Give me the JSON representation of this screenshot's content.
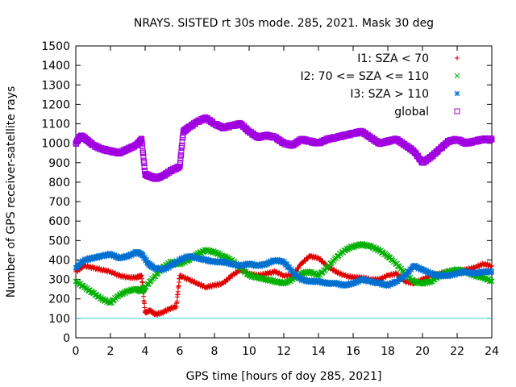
{
  "chart_data": {
    "type": "scatter",
    "title": "NRAYS. SISTED rt 30s mode. 285, 2021. Mask 30 deg",
    "xlabel": "GPS time [hours of doy 285, 2021]",
    "ylabel": "Number of GPS receiver-satellite rays",
    "xlim": [
      0,
      24
    ],
    "ylim": [
      0,
      1500
    ],
    "xticks": [
      "0",
      "2",
      "4",
      "6",
      "8",
      "10",
      "12",
      "14",
      "16",
      "18",
      "20",
      "22",
      "24"
    ],
    "yticks": [
      "0",
      "100",
      "200",
      "300",
      "400",
      "500",
      "600",
      "700",
      "800",
      "900",
      "1000",
      "1100",
      "1200",
      "1300",
      "1400",
      "1500"
    ],
    "reference_line": {
      "y": 100,
      "color": "#40d0e0"
    },
    "legend_position": "top-right",
    "series": [
      {
        "name": "I1: SZA < 70",
        "marker": "plus",
        "color": "#e00000",
        "x": [
          0.0,
          0.5,
          1.0,
          1.5,
          2.0,
          2.5,
          3.0,
          3.5,
          3.8,
          4.0,
          4.3,
          4.6,
          5.0,
          5.4,
          5.8,
          6.0,
          6.5,
          7.0,
          7.5,
          8.0,
          8.5,
          9.0,
          9.5,
          10.0,
          10.5,
          11.0,
          11.5,
          12.0,
          12.5,
          13.0,
          13.5,
          14.0,
          14.5,
          15.0,
          15.5,
          16.0,
          16.5,
          17.0,
          17.5,
          18.0,
          18.5,
          19.0,
          19.5,
          20.0,
          20.5,
          21.0,
          21.5,
          22.0,
          22.5,
          23.0,
          23.5,
          24.0
        ],
        "y": [
          340,
          370,
          360,
          350,
          340,
          320,
          310,
          310,
          320,
          130,
          140,
          120,
          130,
          150,
          160,
          320,
          300,
          280,
          260,
          270,
          280,
          320,
          350,
          330,
          320,
          330,
          340,
          320,
          320,
          380,
          420,
          410,
          370,
          340,
          320,
          310,
          310,
          300,
          300,
          320,
          330,
          290,
          280,
          300,
          320,
          330,
          340,
          340,
          350,
          360,
          380,
          370
        ]
      },
      {
        "name": "I2: 70 <= SZA <= 110",
        "marker": "cross",
        "color": "#00b000",
        "x": [
          0.0,
          0.5,
          1.0,
          1.5,
          2.0,
          2.5,
          3.0,
          3.5,
          3.8,
          4.0,
          4.5,
          5.0,
          5.5,
          6.0,
          6.5,
          7.0,
          7.5,
          8.0,
          8.5,
          9.0,
          9.5,
          10.0,
          10.5,
          11.0,
          11.5,
          12.0,
          12.5,
          13.0,
          13.5,
          14.0,
          14.5,
          15.0,
          15.5,
          16.0,
          16.5,
          17.0,
          17.5,
          18.0,
          18.5,
          19.0,
          19.5,
          20.0,
          20.5,
          21.0,
          21.5,
          22.0,
          22.5,
          23.0,
          23.5,
          24.0
        ],
        "y": [
          290,
          260,
          230,
          200,
          180,
          220,
          240,
          250,
          240,
          260,
          310,
          360,
          390,
          380,
          400,
          430,
          450,
          440,
          420,
          400,
          360,
          320,
          310,
          300,
          290,
          280,
          300,
          330,
          340,
          320,
          360,
          410,
          450,
          470,
          480,
          470,
          450,
          420,
          380,
          330,
          290,
          280,
          290,
          320,
          340,
          350,
          340,
          320,
          310,
          290
        ]
      },
      {
        "name": "I3: SZA > 110",
        "marker": "star",
        "color": "#0070d0",
        "x": [
          0.0,
          0.5,
          1.0,
          1.5,
          2.0,
          2.5,
          3.0,
          3.5,
          3.8,
          4.2,
          4.5,
          5.0,
          5.5,
          6.0,
          6.5,
          7.0,
          7.5,
          8.0,
          8.5,
          9.0,
          9.5,
          10.0,
          10.5,
          11.0,
          11.5,
          12.0,
          12.5,
          13.0,
          13.5,
          14.0,
          14.5,
          15.0,
          15.5,
          16.0,
          16.5,
          17.0,
          17.5,
          18.0,
          18.5,
          19.0,
          19.5,
          20.0,
          20.5,
          21.0,
          21.5,
          22.0,
          22.5,
          23.0,
          23.5,
          24.0
        ],
        "y": [
          360,
          400,
          410,
          420,
          430,
          410,
          420,
          440,
          430,
          380,
          360,
          350,
          370,
          400,
          420,
          410,
          400,
          390,
          390,
          380,
          370,
          380,
          370,
          380,
          400,
          390,
          340,
          300,
          290,
          290,
          280,
          280,
          270,
          280,
          300,
          290,
          280,
          270,
          290,
          320,
          370,
          350,
          330,
          320,
          320,
          330,
          340,
          330,
          340,
          340
        ]
      },
      {
        "name": "global",
        "marker": "square",
        "color": "#a000e0",
        "x": [
          0.0,
          0.3,
          0.6,
          1.0,
          1.5,
          2.0,
          2.5,
          3.0,
          3.5,
          3.8,
          4.0,
          4.3,
          4.6,
          5.0,
          5.5,
          6.0,
          6.2,
          6.5,
          7.0,
          7.5,
          8.0,
          8.5,
          9.0,
          9.5,
          10.0,
          10.5,
          11.0,
          11.5,
          12.0,
          12.5,
          13.0,
          13.5,
          14.0,
          14.5,
          15.0,
          15.5,
          16.0,
          16.5,
          17.0,
          17.5,
          18.0,
          18.5,
          19.0,
          19.5,
          20.0,
          20.5,
          21.0,
          21.5,
          22.0,
          22.5,
          23.0,
          23.5,
          24.0
        ],
        "y": [
          1000,
          1040,
          1020,
          990,
          970,
          960,
          950,
          970,
          990,
          1020,
          840,
          830,
          820,
          830,
          860,
          880,
          1060,
          1080,
          1110,
          1130,
          1100,
          1080,
          1090,
          1100,
          1060,
          1030,
          1040,
          1030,
          1000,
          990,
          1020,
          1010,
          1000,
          1020,
          1030,
          1040,
          1050,
          1060,
          1030,
          1000,
          1010,
          1020,
          990,
          960,
          900,
          930,
          970,
          1010,
          1020,
          1000,
          1010,
          1020,
          1020
        ]
      }
    ]
  }
}
